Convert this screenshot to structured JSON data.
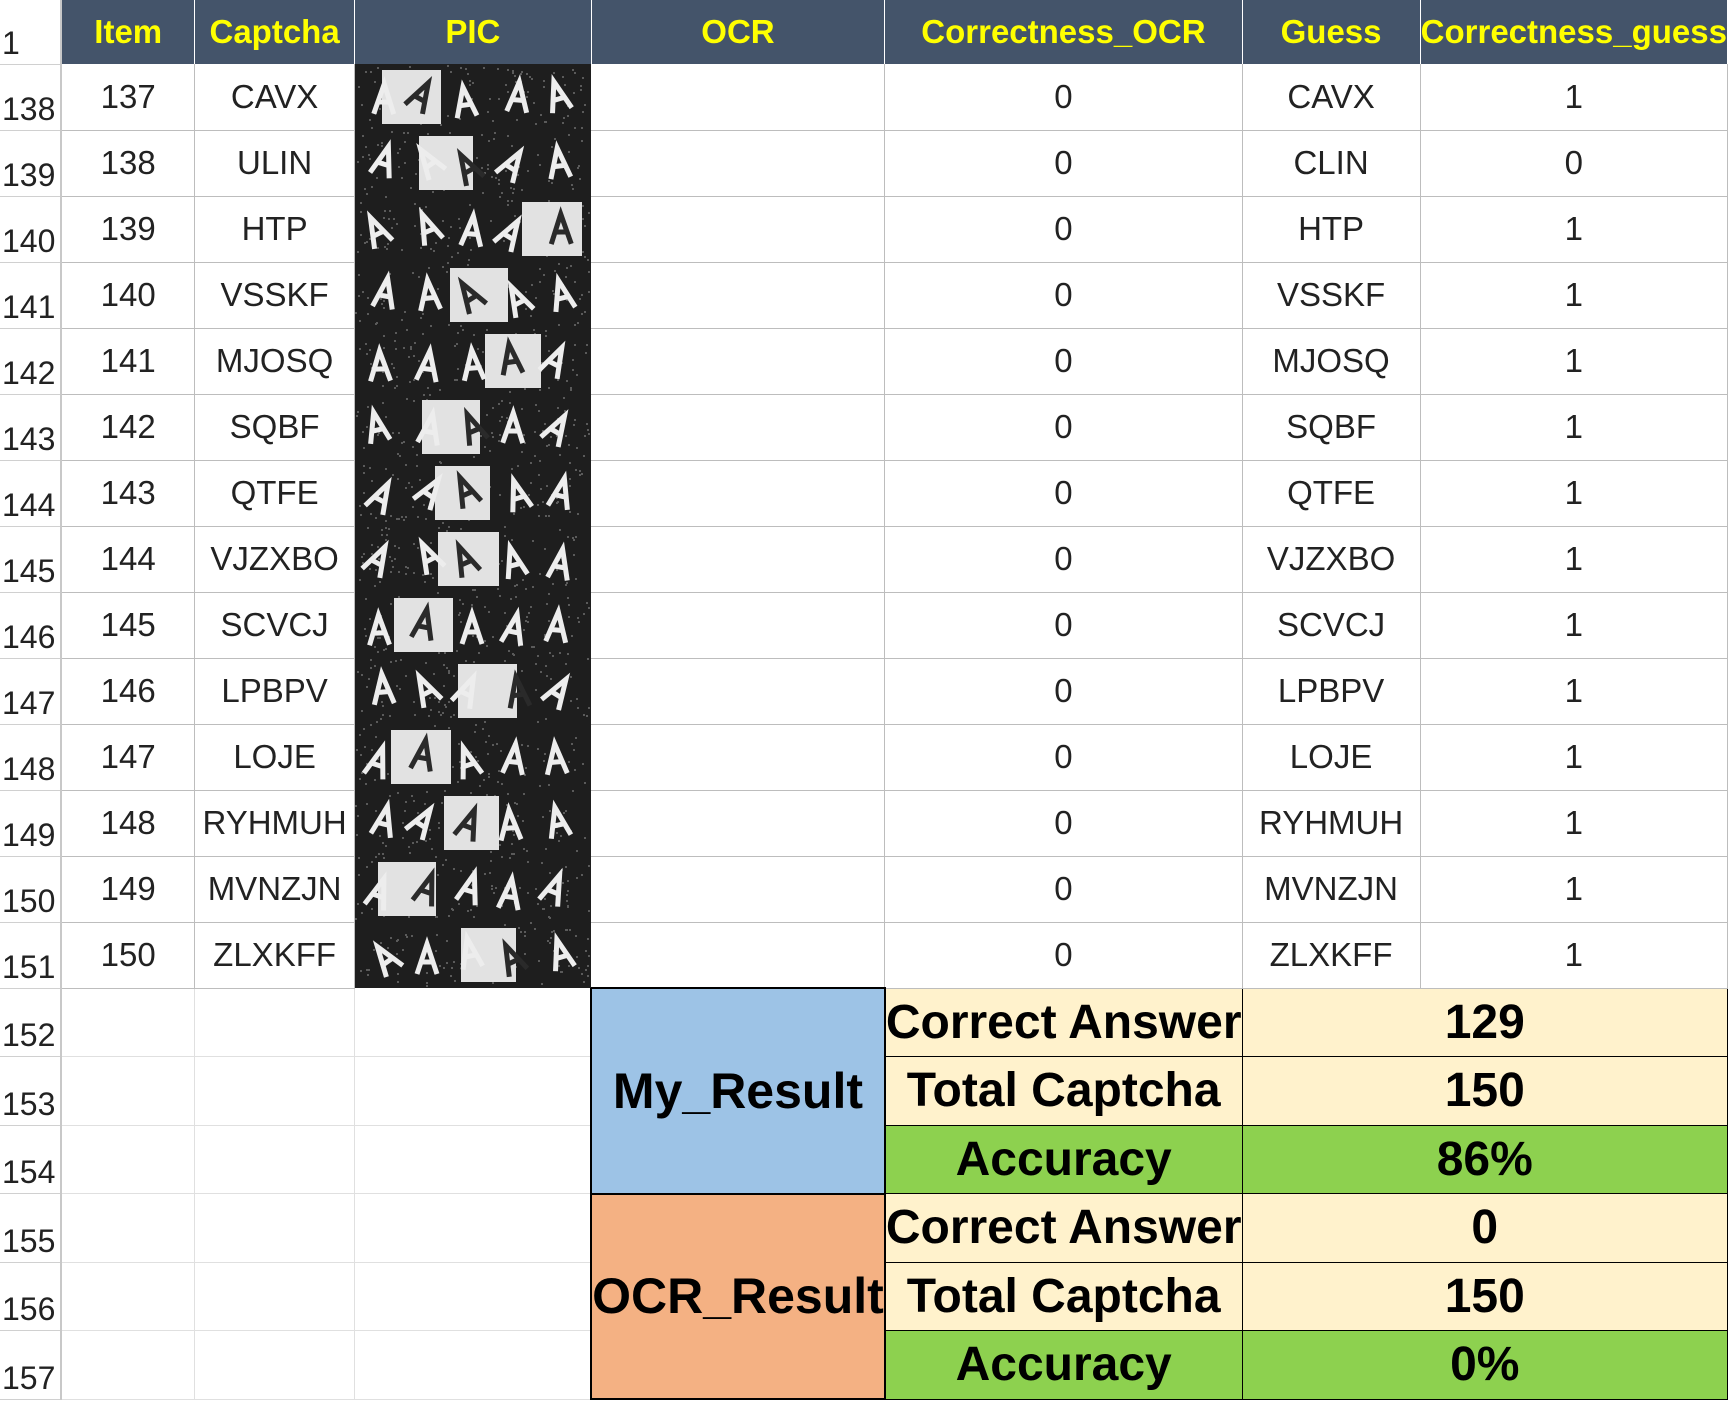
{
  "header": {
    "row_number": "1",
    "columns": [
      "Item",
      "Captcha",
      "PIC",
      "OCR",
      "Correctness_OCR",
      "Guess",
      "Correctness_guess"
    ]
  },
  "rows": [
    {
      "row": "138",
      "item": "137",
      "captcha": "CAVX",
      "ocr": "",
      "correctness_ocr": "0",
      "guess": "CAVX",
      "correctness_guess": "1"
    },
    {
      "row": "139",
      "item": "138",
      "captcha": "ULIN",
      "ocr": "",
      "correctness_ocr": "0",
      "guess": "CLIN",
      "correctness_guess": "0"
    },
    {
      "row": "140",
      "item": "139",
      "captcha": "HTP",
      "ocr": "",
      "correctness_ocr": "0",
      "guess": "HTP",
      "correctness_guess": "1"
    },
    {
      "row": "141",
      "item": "140",
      "captcha": "VSSKF",
      "ocr": "",
      "correctness_ocr": "0",
      "guess": "VSSKF",
      "correctness_guess": "1"
    },
    {
      "row": "142",
      "item": "141",
      "captcha": "MJOSQ",
      "ocr": "",
      "correctness_ocr": "0",
      "guess": "MJOSQ",
      "correctness_guess": "1"
    },
    {
      "row": "143",
      "item": "142",
      "captcha": "SQBF",
      "ocr": "",
      "correctness_ocr": "0",
      "guess": "SQBF",
      "correctness_guess": "1"
    },
    {
      "row": "144",
      "item": "143",
      "captcha": "QTFE",
      "ocr": "",
      "correctness_ocr": "0",
      "guess": "QTFE",
      "correctness_guess": "1"
    },
    {
      "row": "145",
      "item": "144",
      "captcha": "VJZXBO",
      "ocr": "",
      "correctness_ocr": "0",
      "guess": "VJZXBO",
      "correctness_guess": "1"
    },
    {
      "row": "146",
      "item": "145",
      "captcha": "SCVCJ",
      "ocr": "",
      "correctness_ocr": "0",
      "guess": "SCVCJ",
      "correctness_guess": "1"
    },
    {
      "row": "147",
      "item": "146",
      "captcha": "LPBPV",
      "ocr": "",
      "correctness_ocr": "0",
      "guess": "LPBPV",
      "correctness_guess": "1"
    },
    {
      "row": "148",
      "item": "147",
      "captcha": "LOJE",
      "ocr": "",
      "correctness_ocr": "0",
      "guess": "LOJE",
      "correctness_guess": "1"
    },
    {
      "row": "149",
      "item": "148",
      "captcha": "RYHMUH",
      "ocr": "",
      "correctness_ocr": "0",
      "guess": "RYHMUH",
      "correctness_guess": "1"
    },
    {
      "row": "150",
      "item": "149",
      "captcha": "MVNZJN",
      "ocr": "",
      "correctness_ocr": "0",
      "guess": "MVNZJN",
      "correctness_guess": "1"
    },
    {
      "row": "151",
      "item": "150",
      "captcha": "ZLXKFF",
      "ocr": "",
      "correctness_ocr": "0",
      "guess": "ZLXKFF",
      "correctness_guess": "1"
    }
  ],
  "summary_rows": [
    "152",
    "153",
    "154",
    "155",
    "156",
    "157"
  ],
  "summary": {
    "my_result": {
      "label": "My_Result",
      "correct_label": "Correct Answer",
      "correct_value": "129",
      "total_label": "Total Captcha",
      "total_value": "150",
      "accuracy_label": "Accuracy",
      "accuracy_value": "86%"
    },
    "ocr_result": {
      "label": "OCR_Result",
      "correct_label": "Correct Answer",
      "correct_value": "0",
      "total_label": "Total Captcha",
      "total_value": "150",
      "accuracy_label": "Accuracy",
      "accuracy_value": "0%"
    }
  },
  "colors": {
    "header_bg": "#44546a",
    "header_text": "#ffff00",
    "my_result_bg": "#9dc3e6",
    "ocr_result_bg": "#f4b183",
    "summary_cream": "#fff2cc",
    "accuracy_green": "#8dd14f"
  }
}
